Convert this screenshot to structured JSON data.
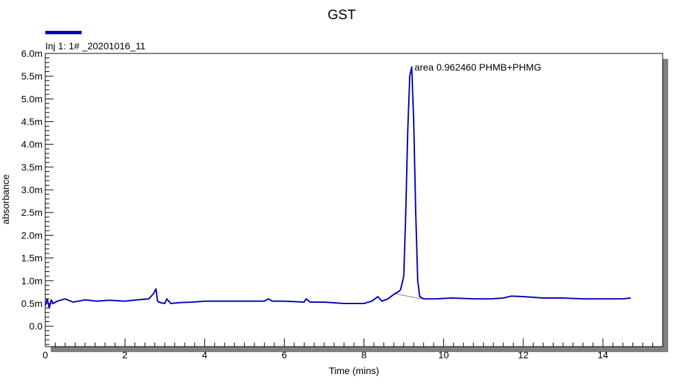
{
  "chart_data": {
    "type": "line",
    "title": "GST",
    "xlabel": "Time (mins)",
    "ylabel": "absorbance",
    "xlim": [
      0,
      15.5
    ],
    "ylim": [
      -0.45,
      6.0
    ],
    "x_ticks": [
      0,
      2,
      4,
      6,
      8,
      10,
      12,
      14
    ],
    "x_tick_labels": [
      "0",
      "2",
      "4",
      "6",
      "8",
      "10",
      "12",
      "14"
    ],
    "y_ticks": [
      0.0,
      0.5,
      1.0,
      1.5,
      2.0,
      2.5,
      3.0,
      3.5,
      4.0,
      4.5,
      5.0,
      5.5,
      6.0
    ],
    "y_tick_labels": [
      "0.0",
      "0.5m",
      "1.0m",
      "1.5m",
      "2.0m",
      "2.5m",
      "3.0m",
      "3.5m",
      "4.0m",
      "4.5m",
      "5.0m",
      "5.5m",
      "6.0m"
    ],
    "grid": false,
    "legend_position": "top-left",
    "colors": {
      "series": "#0000b4",
      "baseline": "#808080",
      "frame_shadow": "#808080"
    },
    "series": [
      {
        "name": "Inj 1: 1# _20201016_11",
        "x": [
          0.0,
          0.05,
          0.1,
          0.15,
          0.2,
          0.3,
          0.5,
          0.7,
          1.0,
          1.3,
          1.6,
          2.0,
          2.3,
          2.6,
          2.72,
          2.78,
          2.82,
          2.88,
          3.0,
          3.05,
          3.15,
          3.4,
          3.7,
          4.0,
          4.5,
          5.0,
          5.5,
          5.6,
          5.7,
          6.0,
          6.5,
          6.55,
          6.65,
          7.0,
          7.5,
          8.0,
          8.2,
          8.35,
          8.45,
          8.6,
          8.75,
          8.85,
          8.92,
          9.0,
          9.05,
          9.1,
          9.15,
          9.2,
          9.25,
          9.3,
          9.35,
          9.4,
          9.5,
          9.8,
          10.2,
          10.8,
          11.2,
          11.5,
          11.7,
          12.0,
          12.5,
          13.0,
          13.5,
          14.0,
          14.5,
          14.7
        ],
        "y": [
          0.45,
          0.6,
          0.4,
          0.58,
          0.5,
          0.55,
          0.6,
          0.53,
          0.58,
          0.55,
          0.57,
          0.55,
          0.58,
          0.6,
          0.72,
          0.82,
          0.55,
          0.52,
          0.5,
          0.6,
          0.5,
          0.52,
          0.53,
          0.55,
          0.55,
          0.55,
          0.55,
          0.6,
          0.55,
          0.55,
          0.53,
          0.6,
          0.53,
          0.53,
          0.5,
          0.5,
          0.55,
          0.65,
          0.55,
          0.6,
          0.7,
          0.75,
          0.8,
          1.1,
          2.5,
          4.3,
          5.5,
          5.7,
          4.5,
          2.5,
          1.0,
          0.65,
          0.6,
          0.6,
          0.62,
          0.6,
          0.6,
          0.62,
          0.66,
          0.65,
          0.62,
          0.62,
          0.6,
          0.6,
          0.6,
          0.62
        ]
      }
    ],
    "baseline": {
      "x": [
        8.75,
        9.45
      ],
      "y": [
        0.72,
        0.6
      ]
    },
    "annotations": [
      {
        "text": "area 0.962460 PHMB+PHMG",
        "x": 9.2,
        "y": 5.7
      }
    ]
  }
}
